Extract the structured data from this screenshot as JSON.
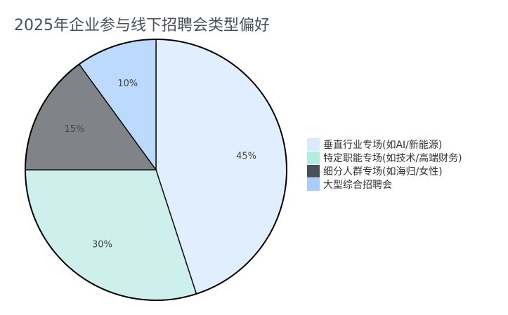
{
  "chart_data": {
    "type": "pie",
    "title": "2025年企业参与线下招聘会类型偏好",
    "categories": [
      "垂直行业专场(如AI/新能源)",
      "特定职能专场(如技术/高端财务)",
      "细分人群专场(如海归/女性)",
      "大型综合招聘会"
    ],
    "values": [
      45,
      30,
      15,
      10
    ],
    "data_labels": [
      "45%",
      "30%",
      "15%",
      "10%"
    ],
    "colors": [
      "#dbeafe",
      "#b2ebe0",
      "#4a5059",
      "#a8cdfc"
    ],
    "slice_colors": [
      "#e0eefe",
      "#cdf0ec",
      "#808489",
      "#bcdafd"
    ],
    "legend_position": "right",
    "start_angle": "top",
    "direction": "clockwise"
  }
}
